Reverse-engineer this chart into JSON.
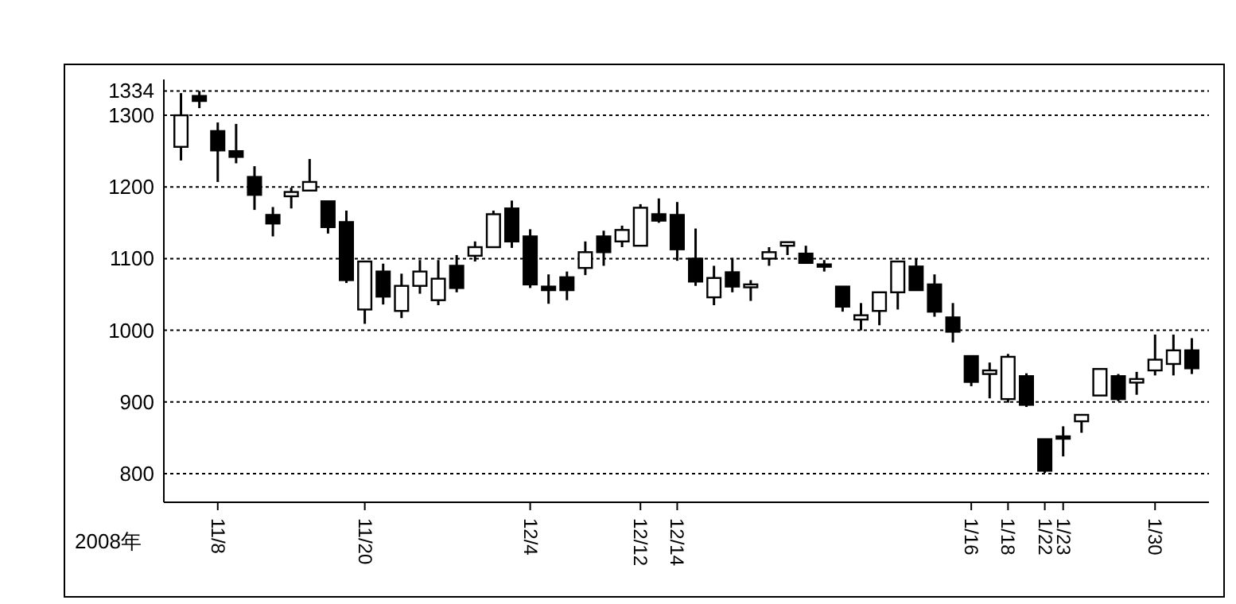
{
  "chart_data": {
    "type": "candlestick",
    "xlabel": "2008年",
    "categories": [
      null,
      null,
      "11/8",
      null,
      null,
      null,
      null,
      null,
      null,
      null,
      "11/20",
      null,
      null,
      null,
      null,
      null,
      null,
      null,
      null,
      "12/4",
      null,
      null,
      null,
      null,
      null,
      "12/12",
      null,
      "12/14",
      null,
      null,
      null,
      null,
      null,
      null,
      null,
      null,
      null,
      null,
      null,
      null,
      null,
      null,
      null,
      "1/16",
      null,
      "1/18",
      null,
      "1/22",
      "1/23",
      null,
      null,
      null,
      null,
      "1/30",
      null,
      null
    ],
    "ohlc": [
      [
        1256,
        1331,
        1237,
        1300
      ],
      [
        1327,
        1334,
        1310,
        1320
      ],
      [
        1278,
        1290,
        1207,
        1251
      ],
      [
        1250,
        1288,
        1233,
        1242
      ],
      [
        1214,
        1229,
        1168,
        1189
      ],
      [
        1161,
        1172,
        1131,
        1149
      ],
      [
        1187,
        1199,
        1170,
        1193
      ],
      [
        1195,
        1239,
        1195,
        1207
      ],
      [
        1180,
        1180,
        1135,
        1144
      ],
      [
        1151,
        1167,
        1066,
        1070
      ],
      [
        1029,
        1096,
        1009,
        1096
      ],
      [
        1082,
        1093,
        1036,
        1047
      ],
      [
        1027,
        1079,
        1017,
        1062
      ],
      [
        1062,
        1098,
        1051,
        1082
      ],
      [
        1042,
        1098,
        1035,
        1072
      ],
      [
        1090,
        1105,
        1053,
        1059
      ],
      [
        1104,
        1124,
        1096,
        1116
      ],
      [
        1116,
        1167,
        1116,
        1162
      ],
      [
        1170,
        1181,
        1115,
        1124
      ],
      [
        1131,
        1141,
        1059,
        1064
      ],
      [
        1061,
        1078,
        1037,
        1056
      ],
      [
        1074,
        1082,
        1042,
        1056
      ],
      [
        1087,
        1124,
        1077,
        1109
      ],
      [
        1131,
        1139,
        1090,
        1109
      ],
      [
        1124,
        1146,
        1116,
        1140
      ],
      [
        1118,
        1176,
        1118,
        1171
      ],
      [
        1162,
        1184,
        1150,
        1153
      ],
      [
        1161,
        1179,
        1097,
        1113
      ],
      [
        1100,
        1142,
        1062,
        1068
      ],
      [
        1046,
        1090,
        1035,
        1073
      ],
      [
        1081,
        1101,
        1053,
        1061
      ],
      [
        1060,
        1070,
        1041,
        1064
      ],
      [
        1100,
        1116,
        1090,
        1109
      ],
      [
        1118,
        1123,
        1105,
        1123
      ],
      [
        1107,
        1118,
        1094,
        1094
      ],
      [
        1092,
        1098,
        1082,
        1089
      ],
      [
        1061,
        1061,
        1026,
        1033
      ],
      [
        1015,
        1038,
        1000,
        1021
      ],
      [
        1027,
        1053,
        1007,
        1053
      ],
      [
        1053,
        1096,
        1029,
        1096
      ],
      [
        1089,
        1100,
        1056,
        1056
      ],
      [
        1064,
        1078,
        1019,
        1026
      ],
      [
        1018,
        1038,
        983,
        998
      ],
      [
        964,
        964,
        922,
        928
      ],
      [
        939,
        955,
        905,
        944
      ],
      [
        904,
        967,
        899,
        963
      ],
      [
        936,
        940,
        893,
        896
      ],
      [
        848,
        848,
        801,
        804
      ],
      [
        852,
        866,
        824,
        849
      ],
      [
        873,
        882,
        857,
        882
      ],
      [
        909,
        946,
        909,
        946
      ],
      [
        936,
        939,
        901,
        904
      ],
      [
        927,
        942,
        910,
        932
      ],
      [
        944,
        994,
        937,
        959
      ],
      [
        953,
        994,
        937,
        972
      ],
      [
        972,
        989,
        939,
        947
      ]
    ],
    "ylim": [
      760,
      1350
    ],
    "yticks": [
      800,
      900,
      1000,
      1100,
      1200,
      1300,
      1334
    ],
    "grid": "y"
  }
}
